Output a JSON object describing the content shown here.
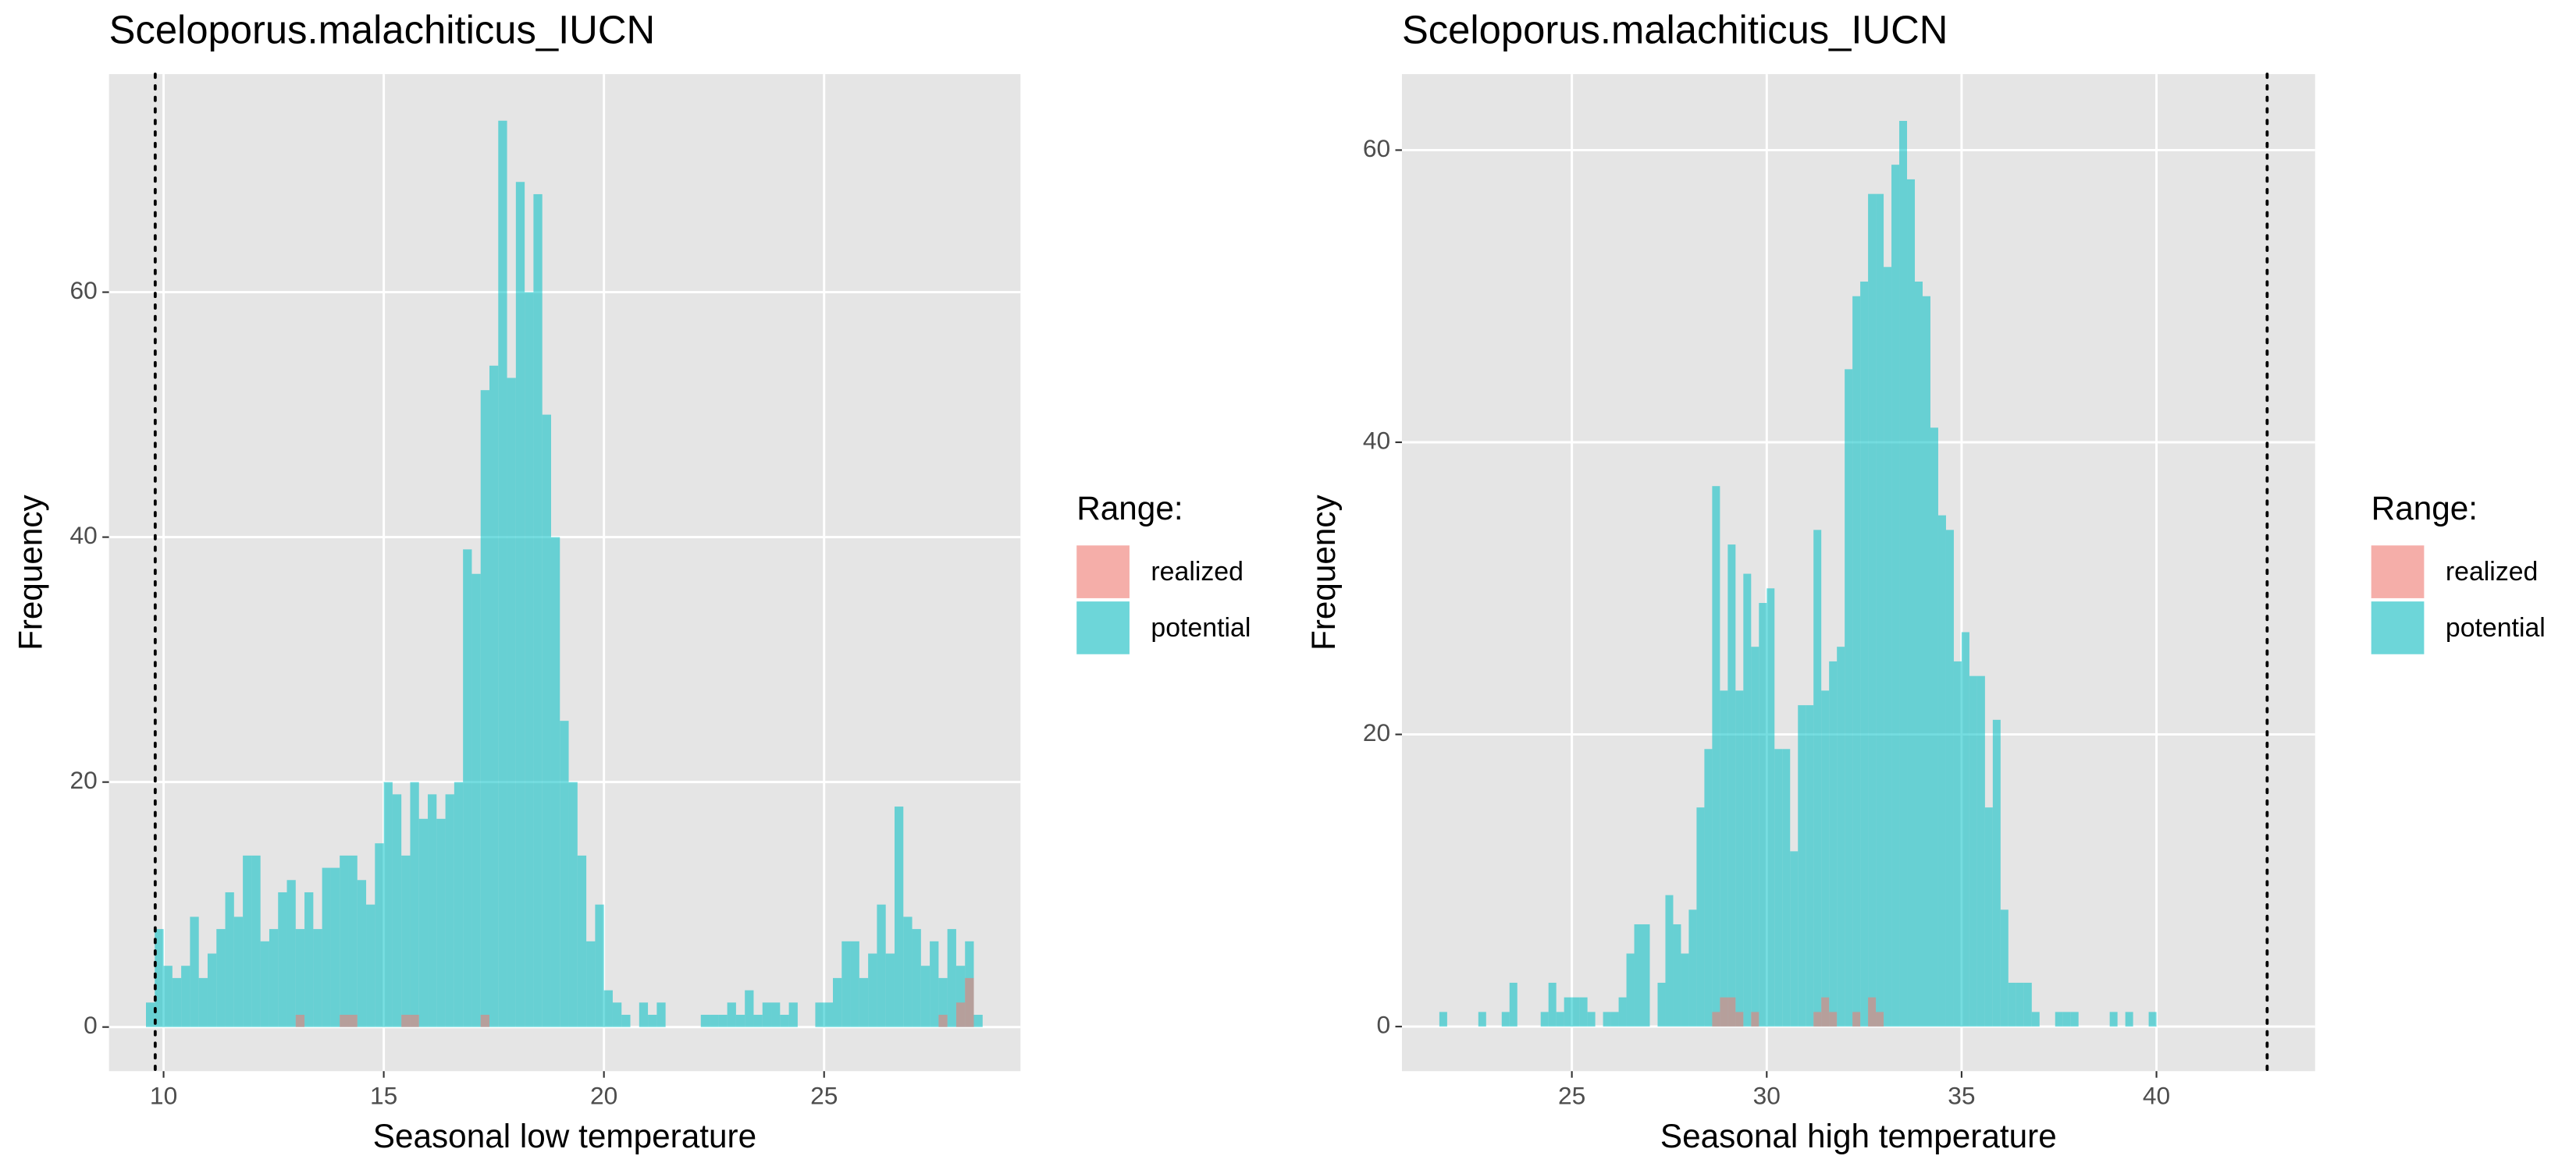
{
  "chart_data": [
    {
      "type": "histogram",
      "title": "Sceloporus.malachiticus_IUCN",
      "x_label": "Seasonal low temperature",
      "y_label": "Frequency",
      "legend_title": "Range:",
      "legend": "right",
      "grid": true,
      "alpha": 0.55,
      "bins": [
        9.6,
        9.8,
        10.0,
        10.2,
        10.4,
        10.6,
        10.8,
        11.0,
        11.2,
        11.4,
        11.6,
        11.8,
        12.0,
        12.2,
        12.4,
        12.6,
        12.8,
        13.0,
        13.2,
        13.4,
        13.6,
        13.8,
        14.0,
        14.2,
        14.4,
        14.6,
        14.8,
        15.0,
        15.2,
        15.4,
        15.6,
        15.8,
        16.0,
        16.2,
        16.4,
        16.6,
        16.8,
        17.0,
        17.2,
        17.4,
        17.6,
        17.8,
        18.0,
        18.2,
        18.4,
        18.6,
        18.8,
        19.0,
        19.2,
        19.4,
        19.6,
        19.8,
        20.0,
        20.2,
        20.4,
        20.6,
        20.8,
        21.0,
        21.2,
        21.4,
        21.6,
        21.8,
        22.0,
        22.2,
        22.4,
        22.6,
        22.8,
        23.0,
        23.2,
        23.4,
        23.6,
        23.8,
        24.0,
        24.2,
        24.4,
        24.6,
        24.8,
        25.0,
        25.2,
        25.4,
        25.6,
        25.8,
        26.0,
        26.2,
        26.4,
        26.6,
        26.8,
        27.0,
        27.2,
        27.4,
        27.6,
        27.8,
        28.0,
        28.2,
        28.4,
        28.6
      ],
      "series": [
        {
          "name": "realized",
          "color": "#F8766D",
          "values": [
            0,
            0,
            0,
            0,
            0,
            0,
            0,
            0,
            0,
            0,
            0,
            0,
            0,
            0,
            0,
            0,
            0,
            1,
            0,
            0,
            0,
            0,
            1,
            1,
            0,
            0,
            0,
            0,
            0,
            1,
            1,
            0,
            0,
            0,
            0,
            0,
            0,
            0,
            1,
            0,
            0,
            0,
            0,
            0,
            0,
            0,
            0,
            0,
            0,
            0,
            0,
            0,
            0,
            0,
            0,
            0,
            0,
            0,
            0,
            0,
            0,
            0,
            0,
            0,
            0,
            0,
            0,
            0,
            0,
            0,
            0,
            0,
            0,
            0,
            0,
            0,
            0,
            0,
            0,
            0,
            0,
            0,
            0,
            0,
            0,
            0,
            0,
            0,
            0,
            0,
            1,
            0,
            2,
            4,
            0
          ]
        },
        {
          "name": "potential",
          "color": "#00BFC4",
          "values": [
            2,
            8,
            5,
            4,
            5,
            9,
            4,
            6,
            8,
            11,
            9,
            14,
            14,
            7,
            8,
            11,
            12,
            8,
            11,
            8,
            13,
            13,
            14,
            14,
            12,
            10,
            15,
            20,
            19,
            14,
            20,
            17,
            19,
            17,
            19,
            20,
            39,
            37,
            52,
            54,
            74,
            53,
            69,
            60,
            68,
            50,
            40,
            25,
            20,
            14,
            7,
            10,
            3,
            2,
            1,
            0,
            2,
            1,
            2,
            0,
            0,
            0,
            0,
            1,
            1,
            1,
            2,
            1,
            3,
            1,
            2,
            2,
            1,
            2,
            0,
            0,
            2,
            2,
            4,
            7,
            7,
            4,
            6,
            10,
            6,
            18,
            9,
            8,
            5,
            7,
            4,
            8,
            5,
            7,
            1
          ]
        }
      ],
      "xlim": [
        8.76,
        29.46
      ],
      "ylim": [
        -3.6,
        77.8
      ],
      "xticks": [
        10,
        15,
        20,
        25
      ],
      "yticks": [
        0,
        20,
        40,
        60
      ],
      "vline": 9.81
    },
    {
      "type": "histogram",
      "title": "Sceloporus.malachiticus_IUCN",
      "x_label": "Seasonal high temperature",
      "y_label": "Frequency",
      "legend_title": "Range:",
      "legend": "right",
      "grid": true,
      "alpha": 0.55,
      "bins": [
        21.6,
        21.8,
        22.0,
        22.2,
        22.4,
        22.6,
        22.8,
        23.0,
        23.2,
        23.4,
        23.6,
        23.8,
        24.0,
        24.2,
        24.4,
        24.6,
        24.8,
        25.0,
        25.2,
        25.4,
        25.6,
        25.8,
        26.0,
        26.2,
        26.4,
        26.6,
        26.8,
        27.0,
        27.2,
        27.4,
        27.6,
        27.8,
        28.0,
        28.2,
        28.4,
        28.6,
        28.8,
        29.0,
        29.2,
        29.4,
        29.6,
        29.8,
        30.0,
        30.2,
        30.4,
        30.6,
        30.8,
        31.0,
        31.2,
        31.4,
        31.6,
        31.8,
        32.0,
        32.2,
        32.4,
        32.6,
        32.8,
        33.0,
        33.2,
        33.4,
        33.6,
        33.8,
        34.0,
        34.2,
        34.4,
        34.6,
        34.8,
        35.0,
        35.2,
        35.4,
        35.6,
        35.8,
        36.0,
        36.2,
        36.4,
        36.6,
        36.8,
        37.0,
        37.2,
        37.4,
        37.6,
        37.8,
        38.0,
        38.2,
        38.4,
        38.6,
        38.8,
        39.0,
        39.2,
        39.4,
        39.6,
        39.8,
        40.0
      ],
      "series": [
        {
          "name": "realized",
          "color": "#F8766D",
          "values": [
            0,
            0,
            0,
            0,
            0,
            0,
            0,
            0,
            0,
            0,
            0,
            0,
            0,
            0,
            0,
            0,
            0,
            0,
            0,
            0,
            0,
            0,
            0,
            0,
            0,
            0,
            0,
            0,
            0,
            0,
            0,
            0,
            0,
            0,
            0,
            1,
            2,
            2,
            1,
            0,
            1,
            0,
            0,
            0,
            0,
            0,
            0,
            0,
            1,
            2,
            1,
            0,
            0,
            1,
            0,
            2,
            1,
            0,
            0,
            0,
            0,
            0,
            0,
            0,
            0,
            0,
            0,
            0,
            0,
            0,
            0,
            0,
            0,
            0,
            0,
            0,
            0,
            0,
            0,
            0,
            0,
            0,
            0,
            0,
            0,
            0,
            0,
            0,
            0,
            0,
            0,
            0
          ]
        },
        {
          "name": "potential",
          "color": "#00BFC4",
          "values": [
            1,
            0,
            0,
            0,
            0,
            1,
            0,
            0,
            1,
            3,
            0,
            0,
            0,
            1,
            3,
            1,
            2,
            2,
            2,
            1,
            0,
            1,
            1,
            2,
            5,
            7,
            7,
            0,
            3,
            9,
            7,
            5,
            8,
            15,
            19,
            37,
            23,
            33,
            23,
            31,
            26,
            29,
            30,
            19,
            19,
            12,
            22,
            22,
            34,
            23,
            25,
            26,
            45,
            50,
            51,
            57,
            57,
            52,
            59,
            62,
            58,
            51,
            50,
            41,
            35,
            34,
            25,
            27,
            24,
            24,
            15,
            21,
            8,
            3,
            3,
            3,
            1,
            0,
            0,
            1,
            1,
            1,
            0,
            0,
            0,
            0,
            1,
            0,
            1,
            0,
            0,
            1
          ]
        }
      ],
      "xlim": [
        20.64,
        44.07
      ],
      "ylim": [
        -3.05,
        65.2
      ],
      "xticks": [
        25,
        30,
        35,
        40
      ],
      "yticks": [
        0,
        20,
        40,
        60
      ],
      "vline": 42.84
    }
  ]
}
